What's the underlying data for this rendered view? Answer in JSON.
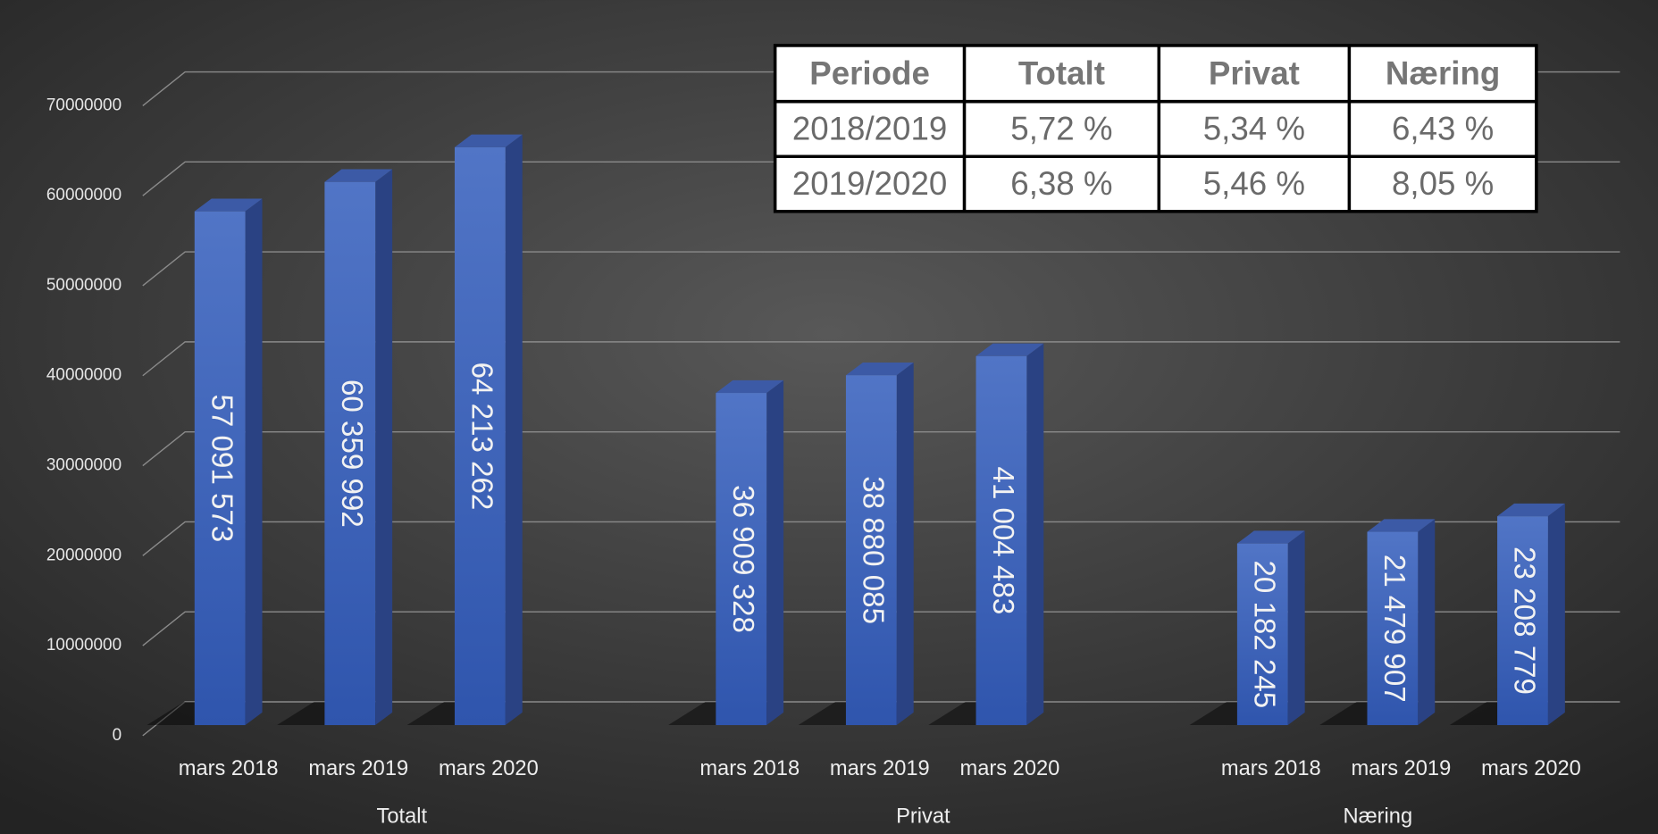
{
  "chart_data": {
    "type": "bar",
    "groups": [
      "Totalt",
      "Privat",
      "Næring"
    ],
    "categories": [
      "mars 2018",
      "mars 2019",
      "mars 2020",
      "mars 2018",
      "mars 2019",
      "mars 2020",
      "mars 2018",
      "mars 2019",
      "mars 2020"
    ],
    "values": [
      57091573,
      60359992,
      64213262,
      36909328,
      38880085,
      41004483,
      20182245,
      21479907,
      23208779
    ],
    "value_labels": [
      "57 091 573",
      "60 359 992",
      "64 213 262",
      "36 909 328",
      "38 880 085",
      "41 004 483",
      "20 182 245",
      "21 479 907",
      "23 208 779"
    ],
    "color": "#3f64b8",
    "ylim": [
      0,
      70000000
    ],
    "yticks": [
      0,
      10000000,
      20000000,
      30000000,
      40000000,
      50000000,
      60000000,
      70000000
    ],
    "grid": true
  },
  "table": {
    "header": [
      "Periode",
      "Totalt",
      "Privat",
      "Næring"
    ],
    "rows": [
      [
        "2018/2019",
        "5,72 %",
        "5,34 %",
        "6,43 %"
      ],
      [
        "2019/2020",
        "6,38 %",
        "5,46 %",
        "8,05 %"
      ]
    ]
  }
}
